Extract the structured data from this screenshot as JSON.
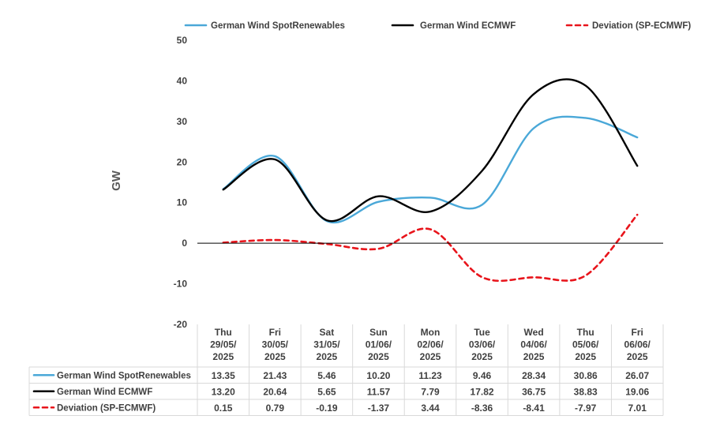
{
  "chart_data": {
    "type": "line",
    "ylabel": "GW",
    "ylim": [
      -20,
      50
    ],
    "yticks": [
      50,
      40,
      30,
      20,
      10,
      0,
      -10,
      -20
    ],
    "categories": [
      [
        "Thu",
        "29/05/",
        "2025"
      ],
      [
        "Fri",
        "30/05/",
        "2025"
      ],
      [
        "Sat",
        "31/05/",
        "2025"
      ],
      [
        "Sun",
        "01/06/",
        "2025"
      ],
      [
        "Mon",
        "02/06/",
        "2025"
      ],
      [
        "Tue",
        "03/06/",
        "2025"
      ],
      [
        "Wed",
        "04/06/",
        "2025"
      ],
      [
        "Thu",
        "05/06/",
        "2025"
      ],
      [
        "Fri",
        "06/06/",
        "2025"
      ]
    ],
    "legend_position": "top",
    "grid": false,
    "series": [
      {
        "name": "German Wind SpotRenewables",
        "color": "#4aa8d8",
        "dash": "solid",
        "values": [
          13.35,
          21.43,
          5.46,
          10.2,
          11.23,
          9.46,
          28.34,
          30.86,
          26.07
        ],
        "labels": [
          "13.35",
          "21.43",
          "5.46",
          "10.20",
          "11.23",
          "9.46",
          "28.34",
          "30.86",
          "26.07"
        ]
      },
      {
        "name": "German Wind ECMWF",
        "color": "#000000",
        "dash": "solid",
        "values": [
          13.2,
          20.64,
          5.65,
          11.57,
          7.79,
          17.82,
          36.75,
          38.83,
          19.06
        ],
        "labels": [
          "13.20",
          "20.64",
          "5.65",
          "11.57",
          "7.79",
          "17.82",
          "36.75",
          "38.83",
          "19.06"
        ]
      },
      {
        "name": "Deviation (SP-ECMWF)",
        "color": "#e8141b",
        "dash": "dashed",
        "values": [
          0.15,
          0.79,
          -0.19,
          -1.37,
          3.44,
          -8.36,
          -8.41,
          -7.97,
          7.01
        ],
        "labels": [
          "0.15",
          "0.79",
          "-0.19",
          "-1.37",
          "3.44",
          "-8.36",
          "-8.41",
          "-7.97",
          "7.01"
        ]
      }
    ],
    "legend_labels": [
      "German Wind SpotRenewables",
      "German Wind ECMWF",
      "Deviation (SP-ECMWF)"
    ],
    "table_row_labels": [
      "German Wind SpotRenewables",
      "German Wind ECMWF",
      "Deviation (SP-ECMWF)"
    ]
  }
}
